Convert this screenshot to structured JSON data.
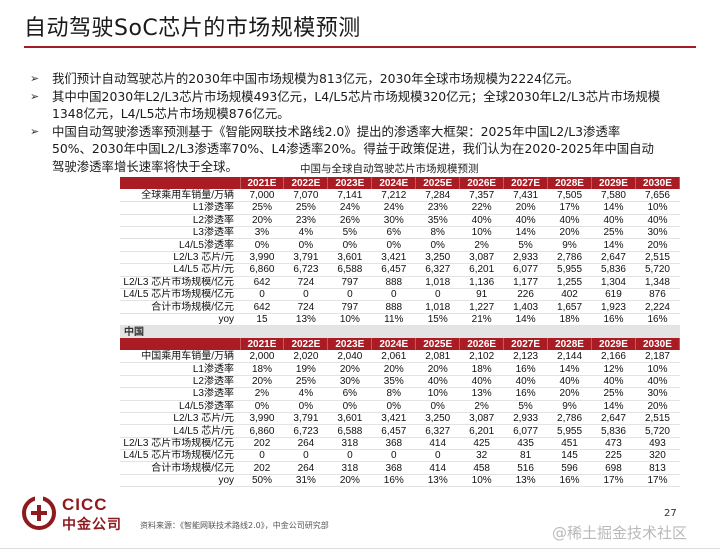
{
  "title": "自动驾驶SoC芯片的市场规模预测",
  "bullets": [
    {
      "lines": [
        "我们预计自动驾驶芯片的2030年中国市场规模为813亿元，2030年全球市场规模为2224亿元。"
      ]
    },
    {
      "lines": [
        "其中中国2030年L2/L3芯片市场规模493亿元，L4/L5芯片市场规模320亿元；全球2030年L2/L3芯片市场规模",
        "1348亿元，L4/L5芯片市场规模876亿元。"
      ]
    },
    {
      "lines": [
        "中国自动驾驶渗透率预测基于《智能网联技术路线2.0》提出的渗透率大框架：2025年中国L2/L3渗透率",
        "50%、2030年中国L2/L3渗透率70%、L4渗透率20%。得益于政策促进，我们认为在2020-2025年中国自动",
        "驾驶渗透率增长速率将快于全球。"
      ]
    }
  ],
  "table": {
    "caption": "中国与全球自动驾驶芯片市场规模预测",
    "years": [
      "2021E",
      "2022E",
      "2023E",
      "2024E",
      "2025E",
      "2026E",
      "2027E",
      "2028E",
      "2029E",
      "2030E"
    ],
    "global_rows": [
      {
        "label": "全球乘用车销量/万辆",
        "values": [
          "7,000",
          "7,070",
          "7,141",
          "7,212",
          "7,284",
          "7,357",
          "7,431",
          "7,505",
          "7,580",
          "7,656"
        ]
      },
      {
        "label": "L1渗透率",
        "values": [
          "25%",
          "25%",
          "24%",
          "24%",
          "23%",
          "22%",
          "20%",
          "17%",
          "14%",
          "10%"
        ]
      },
      {
        "label": "L2渗透率",
        "values": [
          "20%",
          "23%",
          "26%",
          "30%",
          "35%",
          "40%",
          "40%",
          "40%",
          "40%",
          "40%"
        ]
      },
      {
        "label": "L3渗透率",
        "values": [
          "3%",
          "4%",
          "5%",
          "6%",
          "8%",
          "10%",
          "14%",
          "20%",
          "25%",
          "30%"
        ]
      },
      {
        "label": "L4/L5渗透率",
        "values": [
          "0%",
          "0%",
          "0%",
          "0%",
          "0%",
          "2%",
          "5%",
          "9%",
          "14%",
          "20%"
        ]
      },
      {
        "label": "L2/L3 芯片/元",
        "values": [
          "3,990",
          "3,791",
          "3,601",
          "3,421",
          "3,250",
          "3,087",
          "2,933",
          "2,786",
          "2,647",
          "2,515"
        ]
      },
      {
        "label": "L4/L5 芯片/元",
        "values": [
          "6,860",
          "6,723",
          "6,588",
          "6,457",
          "6,327",
          "6,201",
          "6,077",
          "5,955",
          "5,836",
          "5,720"
        ]
      },
      {
        "label": "L2/L3 芯片市场规模/亿元",
        "values": [
          "642",
          "724",
          "797",
          "888",
          "1,018",
          "1,136",
          "1,177",
          "1,255",
          "1,304",
          "1,348"
        ]
      },
      {
        "label": "L4/L5 芯片市场规模/亿元",
        "values": [
          "0",
          "0",
          "0",
          "0",
          "0",
          "91",
          "226",
          "402",
          "619",
          "876"
        ]
      },
      {
        "label": "合计市场规模/亿元",
        "values": [
          "642",
          "724",
          "797",
          "888",
          "1,018",
          "1,227",
          "1,403",
          "1,657",
          "1,923",
          "2,224"
        ]
      },
      {
        "label": "yoy",
        "values": [
          "15",
          "13%",
          "10%",
          "11%",
          "15%",
          "21%",
          "14%",
          "18%",
          "16%",
          "16%"
        ]
      }
    ],
    "china_section_label": "中国",
    "china_rows": [
      {
        "label": "中国乘用车销量/万辆",
        "values": [
          "2,000",
          "2,020",
          "2,040",
          "2,061",
          "2,081",
          "2,102",
          "2,123",
          "2,144",
          "2,166",
          "2,187"
        ]
      },
      {
        "label": "L1渗透率",
        "values": [
          "18%",
          "19%",
          "20%",
          "20%",
          "20%",
          "18%",
          "16%",
          "14%",
          "12%",
          "10%"
        ]
      },
      {
        "label": "L2渗透率",
        "values": [
          "20%",
          "25%",
          "30%",
          "35%",
          "40%",
          "40%",
          "40%",
          "40%",
          "40%",
          "40%"
        ]
      },
      {
        "label": "L3渗透率",
        "values": [
          "2%",
          "4%",
          "6%",
          "8%",
          "10%",
          "13%",
          "16%",
          "20%",
          "25%",
          "30%"
        ]
      },
      {
        "label": "L4/L5渗透率",
        "values": [
          "0%",
          "0%",
          "0%",
          "0%",
          "0%",
          "2%",
          "5%",
          "9%",
          "14%",
          "20%"
        ]
      },
      {
        "label": "L2/L3 芯片/元",
        "values": [
          "3,990",
          "3,791",
          "3,601",
          "3,421",
          "3,250",
          "3,087",
          "2,933",
          "2,786",
          "2,647",
          "2,515"
        ]
      },
      {
        "label": "L4/L5 芯片/元",
        "values": [
          "6,860",
          "6,723",
          "6,588",
          "6,457",
          "6,327",
          "6,201",
          "6,077",
          "5,955",
          "5,836",
          "5,720"
        ]
      },
      {
        "label": "L2/L3 芯片市场规模/亿元",
        "values": [
          "202",
          "264",
          "318",
          "368",
          "414",
          "425",
          "435",
          "451",
          "473",
          "493"
        ]
      },
      {
        "label": "L4/L5 芯片市场规模/亿元",
        "values": [
          "0",
          "0",
          "0",
          "0",
          "0",
          "32",
          "81",
          "145",
          "225",
          "320"
        ]
      },
      {
        "label": "合计市场规模/亿元",
        "values": [
          "202",
          "264",
          "318",
          "368",
          "414",
          "458",
          "516",
          "596",
          "698",
          "813"
        ]
      },
      {
        "label": "yoy",
        "values": [
          "50%",
          "31%",
          "20%",
          "16%",
          "13%",
          "10%",
          "13%",
          "16%",
          "17%",
          "17%"
        ]
      }
    ]
  },
  "footer": {
    "logo_en": "CICC",
    "logo_cn": "中金公司",
    "source": "资料来源：《智能网联技术路线2.0》，中金公司研究部",
    "page_number": "27",
    "watermark": "@稀土掘金技术社区"
  },
  "colors": {
    "accent": "#a01d22",
    "header_bg": "#aa1c23",
    "section_bg": "#e4e4e4"
  }
}
